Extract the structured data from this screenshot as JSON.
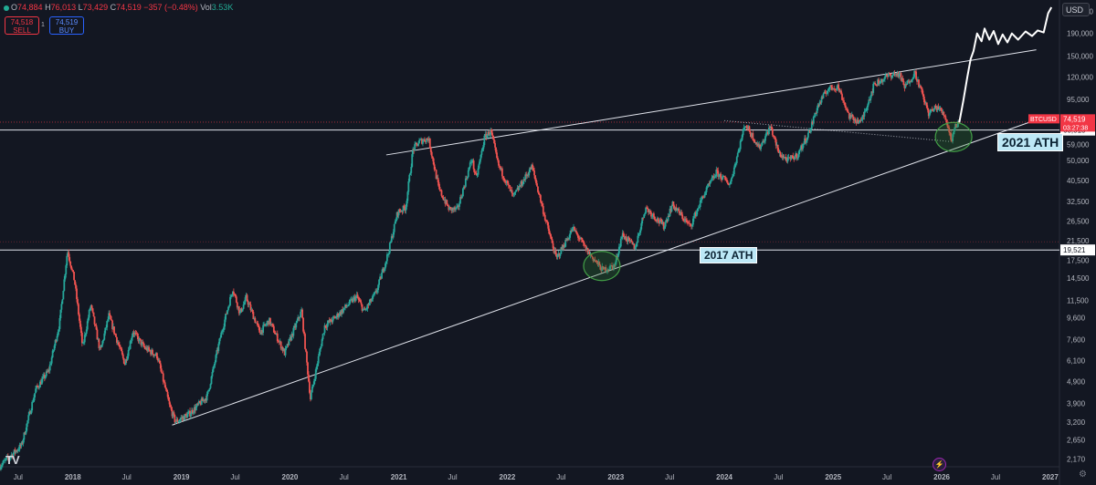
{
  "header": {
    "open_label": "O",
    "open": "74,884",
    "high_label": "H",
    "high": "76,013",
    "low_label": "L",
    "low": "73,429",
    "close_label": "C",
    "close": "74,519",
    "change": "−357 (−0.48%)",
    "vol_label": "Vol",
    "vol": "3.53K"
  },
  "trade": {
    "sell_price": "74,518",
    "sell_label": "SELL",
    "buy_price": "74,519",
    "buy_label": "BUY",
    "spread": "1"
  },
  "currency": "USD",
  "colors": {
    "background": "#131722",
    "up": "#26a69a",
    "down": "#ef5350",
    "projection": "#ffffff",
    "ath_label_bg": "#bde8f6",
    "circle": "#2e7d32",
    "price_tag": "#f23645"
  },
  "chart_data": {
    "type": "candlestick",
    "symbol": "BTCUSD",
    "y_scale": "log",
    "ylim": [
      2000,
      270000
    ],
    "xlim": [
      "2017-05-01",
      "2027-02-01"
    ],
    "y_ticks": [
      "240,000",
      "190,000",
      "150,000",
      "120,000",
      "95,000",
      "75,000",
      "59,000",
      "50,000",
      "40,500",
      "32,500",
      "26,500",
      "21,500",
      "17,500",
      "14,500",
      "11,500",
      "9,600",
      "7,600",
      "6,100",
      "4,900",
      "3,900",
      "3,200",
      "2,650",
      "2,170"
    ],
    "x_ticks": [
      {
        "label": "Jul",
        "date": "2017-07-01"
      },
      {
        "label": "2018",
        "date": "2018-01-01"
      },
      {
        "label": "Jul",
        "date": "2018-07-01"
      },
      {
        "label": "2019",
        "date": "2019-01-01"
      },
      {
        "label": "Jul",
        "date": "2019-07-01"
      },
      {
        "label": "2020",
        "date": "2020-01-01"
      },
      {
        "label": "Jul",
        "date": "2020-07-01"
      },
      {
        "label": "2021",
        "date": "2021-01-01"
      },
      {
        "label": "Jul",
        "date": "2021-07-01"
      },
      {
        "label": "2022",
        "date": "2022-01-01"
      },
      {
        "label": "Jul",
        "date": "2022-07-01"
      },
      {
        "label": "2023",
        "date": "2023-01-01"
      },
      {
        "label": "Jul",
        "date": "2023-07-01"
      },
      {
        "label": "2024",
        "date": "2024-01-01"
      },
      {
        "label": "Jul",
        "date": "2024-07-01"
      },
      {
        "label": "2025",
        "date": "2025-01-01"
      },
      {
        "label": "Jul",
        "date": "2025-07-01"
      },
      {
        "label": "2026",
        "date": "2026-01-01"
      },
      {
        "label": "Jul",
        "date": "2026-07-01"
      },
      {
        "label": "2027",
        "date": "2027-01-01"
      }
    ],
    "price_path": [
      [
        "2017-05-01",
        2000
      ],
      [
        "2017-07-15",
        2500
      ],
      [
        "2017-09-01",
        4500
      ],
      [
        "2017-10-15",
        5500
      ],
      [
        "2017-11-20",
        9000
      ],
      [
        "2017-12-17",
        19500
      ],
      [
        "2018-01-10",
        14000
      ],
      [
        "2018-02-06",
        7000
      ],
      [
        "2018-03-05",
        11000
      ],
      [
        "2018-04-06",
        6700
      ],
      [
        "2018-05-05",
        9800
      ],
      [
        "2018-06-28",
        5900
      ],
      [
        "2018-07-25",
        8300
      ],
      [
        "2018-09-01",
        7000
      ],
      [
        "2018-10-15",
        6400
      ],
      [
        "2018-11-25",
        3800
      ],
      [
        "2018-12-15",
        3200
      ],
      [
        "2019-02-01",
        3500
      ],
      [
        "2019-04-01",
        4200
      ],
      [
        "2019-05-15",
        7800
      ],
      [
        "2019-06-26",
        13000
      ],
      [
        "2019-07-20",
        10000
      ],
      [
        "2019-08-10",
        11800
      ],
      [
        "2019-09-25",
        8200
      ],
      [
        "2019-10-26",
        9300
      ],
      [
        "2019-12-17",
        6600
      ],
      [
        "2020-02-12",
        10300
      ],
      [
        "2020-03-13",
        4100
      ],
      [
        "2020-04-30",
        8800
      ],
      [
        "2020-06-01",
        9500
      ],
      [
        "2020-08-15",
        12000
      ],
      [
        "2020-09-10",
        10200
      ],
      [
        "2020-10-20",
        12500
      ],
      [
        "2020-11-30",
        19000
      ],
      [
        "2020-12-31",
        29000
      ],
      [
        "2021-01-27",
        30500
      ],
      [
        "2021-02-21",
        56000
      ],
      [
        "2021-03-14",
        61000
      ],
      [
        "2021-04-14",
        63000
      ],
      [
        "2021-05-19",
        37000
      ],
      [
        "2021-06-22",
        30000
      ],
      [
        "2021-07-20",
        29800
      ],
      [
        "2021-09-07",
        51000
      ],
      [
        "2021-09-21",
        41000
      ],
      [
        "2021-10-20",
        64000
      ],
      [
        "2021-11-10",
        68000
      ],
      [
        "2021-12-04",
        48000
      ],
      [
        "2022-01-24",
        34000
      ],
      [
        "2022-03-28",
        47000
      ],
      [
        "2022-05-12",
        27000
      ],
      [
        "2022-06-18",
        17800
      ],
      [
        "2022-08-13",
        24500
      ],
      [
        "2022-10-01",
        19200
      ],
      [
        "2022-11-21",
        15800
      ],
      [
        "2023-01-01",
        16600
      ],
      [
        "2023-01-25",
        23000
      ],
      [
        "2023-03-10",
        20000
      ],
      [
        "2023-04-14",
        30500
      ],
      [
        "2023-06-15",
        25000
      ],
      [
        "2023-07-13",
        31500
      ],
      [
        "2023-09-11",
        25000
      ],
      [
        "2023-10-25",
        34500
      ],
      [
        "2023-12-08",
        44000
      ],
      [
        "2024-01-23",
        39000
      ],
      [
        "2024-03-14",
        73500
      ],
      [
        "2024-05-01",
        57000
      ],
      [
        "2024-06-07",
        71500
      ],
      [
        "2024-07-05",
        54000
      ],
      [
        "2024-08-05",
        50000
      ],
      [
        "2024-09-06",
        53000
      ],
      [
        "2024-10-15",
        67000
      ],
      [
        "2024-11-12",
        88000
      ],
      [
        "2024-12-17",
        106000
      ],
      [
        "2025-01-20",
        109000
      ],
      [
        "2025-02-28",
        79000
      ],
      [
        "2025-04-07",
        74500
      ],
      [
        "2025-05-22",
        111000
      ],
      [
        "2025-07-14",
        123000
      ],
      [
        "2025-08-14",
        124000
      ],
      [
        "2025-09-01",
        108000
      ],
      [
        "2025-10-06",
        126000
      ],
      [
        "2025-11-21",
        82000
      ],
      [
        "2025-12-20",
        88000
      ],
      [
        "2026-01-15",
        80000
      ],
      [
        "2026-02-06",
        62000
      ],
      [
        "2026-02-15",
        70000
      ],
      [
        "2026-03-01",
        74519
      ]
    ],
    "projection_path": [
      [
        "2026-03-01",
        74519
      ],
      [
        "2026-03-15",
        94000
      ],
      [
        "2026-03-28",
        120000
      ],
      [
        "2026-04-08",
        145000
      ],
      [
        "2026-04-18",
        158000
      ],
      [
        "2026-04-30",
        190000
      ],
      [
        "2026-05-15",
        175000
      ],
      [
        "2026-05-25",
        200000
      ],
      [
        "2026-06-10",
        178000
      ],
      [
        "2026-06-25",
        195000
      ],
      [
        "2026-07-10",
        170000
      ],
      [
        "2026-07-25",
        188000
      ],
      [
        "2026-08-10",
        173000
      ],
      [
        "2026-08-25",
        190000
      ],
      [
        "2026-09-15",
        178000
      ],
      [
        "2026-10-10",
        194000
      ],
      [
        "2026-11-01",
        185000
      ],
      [
        "2026-11-20",
        196000
      ],
      [
        "2026-12-10",
        192000
      ],
      [
        "2026-12-25",
        235000
      ],
      [
        "2027-01-05",
        250000
      ]
    ],
    "trendlines": [
      {
        "type": "support",
        "from": [
          "2018-12-01",
          3100
        ],
        "to": [
          "2026-12-01",
          78000
        ]
      },
      {
        "type": "resistance",
        "from": [
          "2020-11-20",
          53000
        ],
        "to": [
          "2026-11-15",
          160000
        ]
      },
      {
        "type": "dotted",
        "from": [
          "2024-01-01",
          76000
        ],
        "to": [
          "2026-01-31",
          61000
        ]
      }
    ],
    "horizontal_levels": [
      {
        "name": "2017 ATH",
        "value": 19521,
        "value_label": "19,521"
      },
      {
        "name": "2021 ATH",
        "value": 68815,
        "value_label": "68,815"
      }
    ],
    "circles": [
      {
        "center": [
          "2022-11-15",
          16500
        ]
      },
      {
        "center": [
          "2026-02-10",
          64000
        ]
      }
    ],
    "annotations": [
      "2017 ATH",
      "2021 ATH"
    ],
    "price_tag": {
      "symbol": "BTCUSD",
      "price": "74,519",
      "countdown": "03:27:38"
    },
    "grid": false
  }
}
